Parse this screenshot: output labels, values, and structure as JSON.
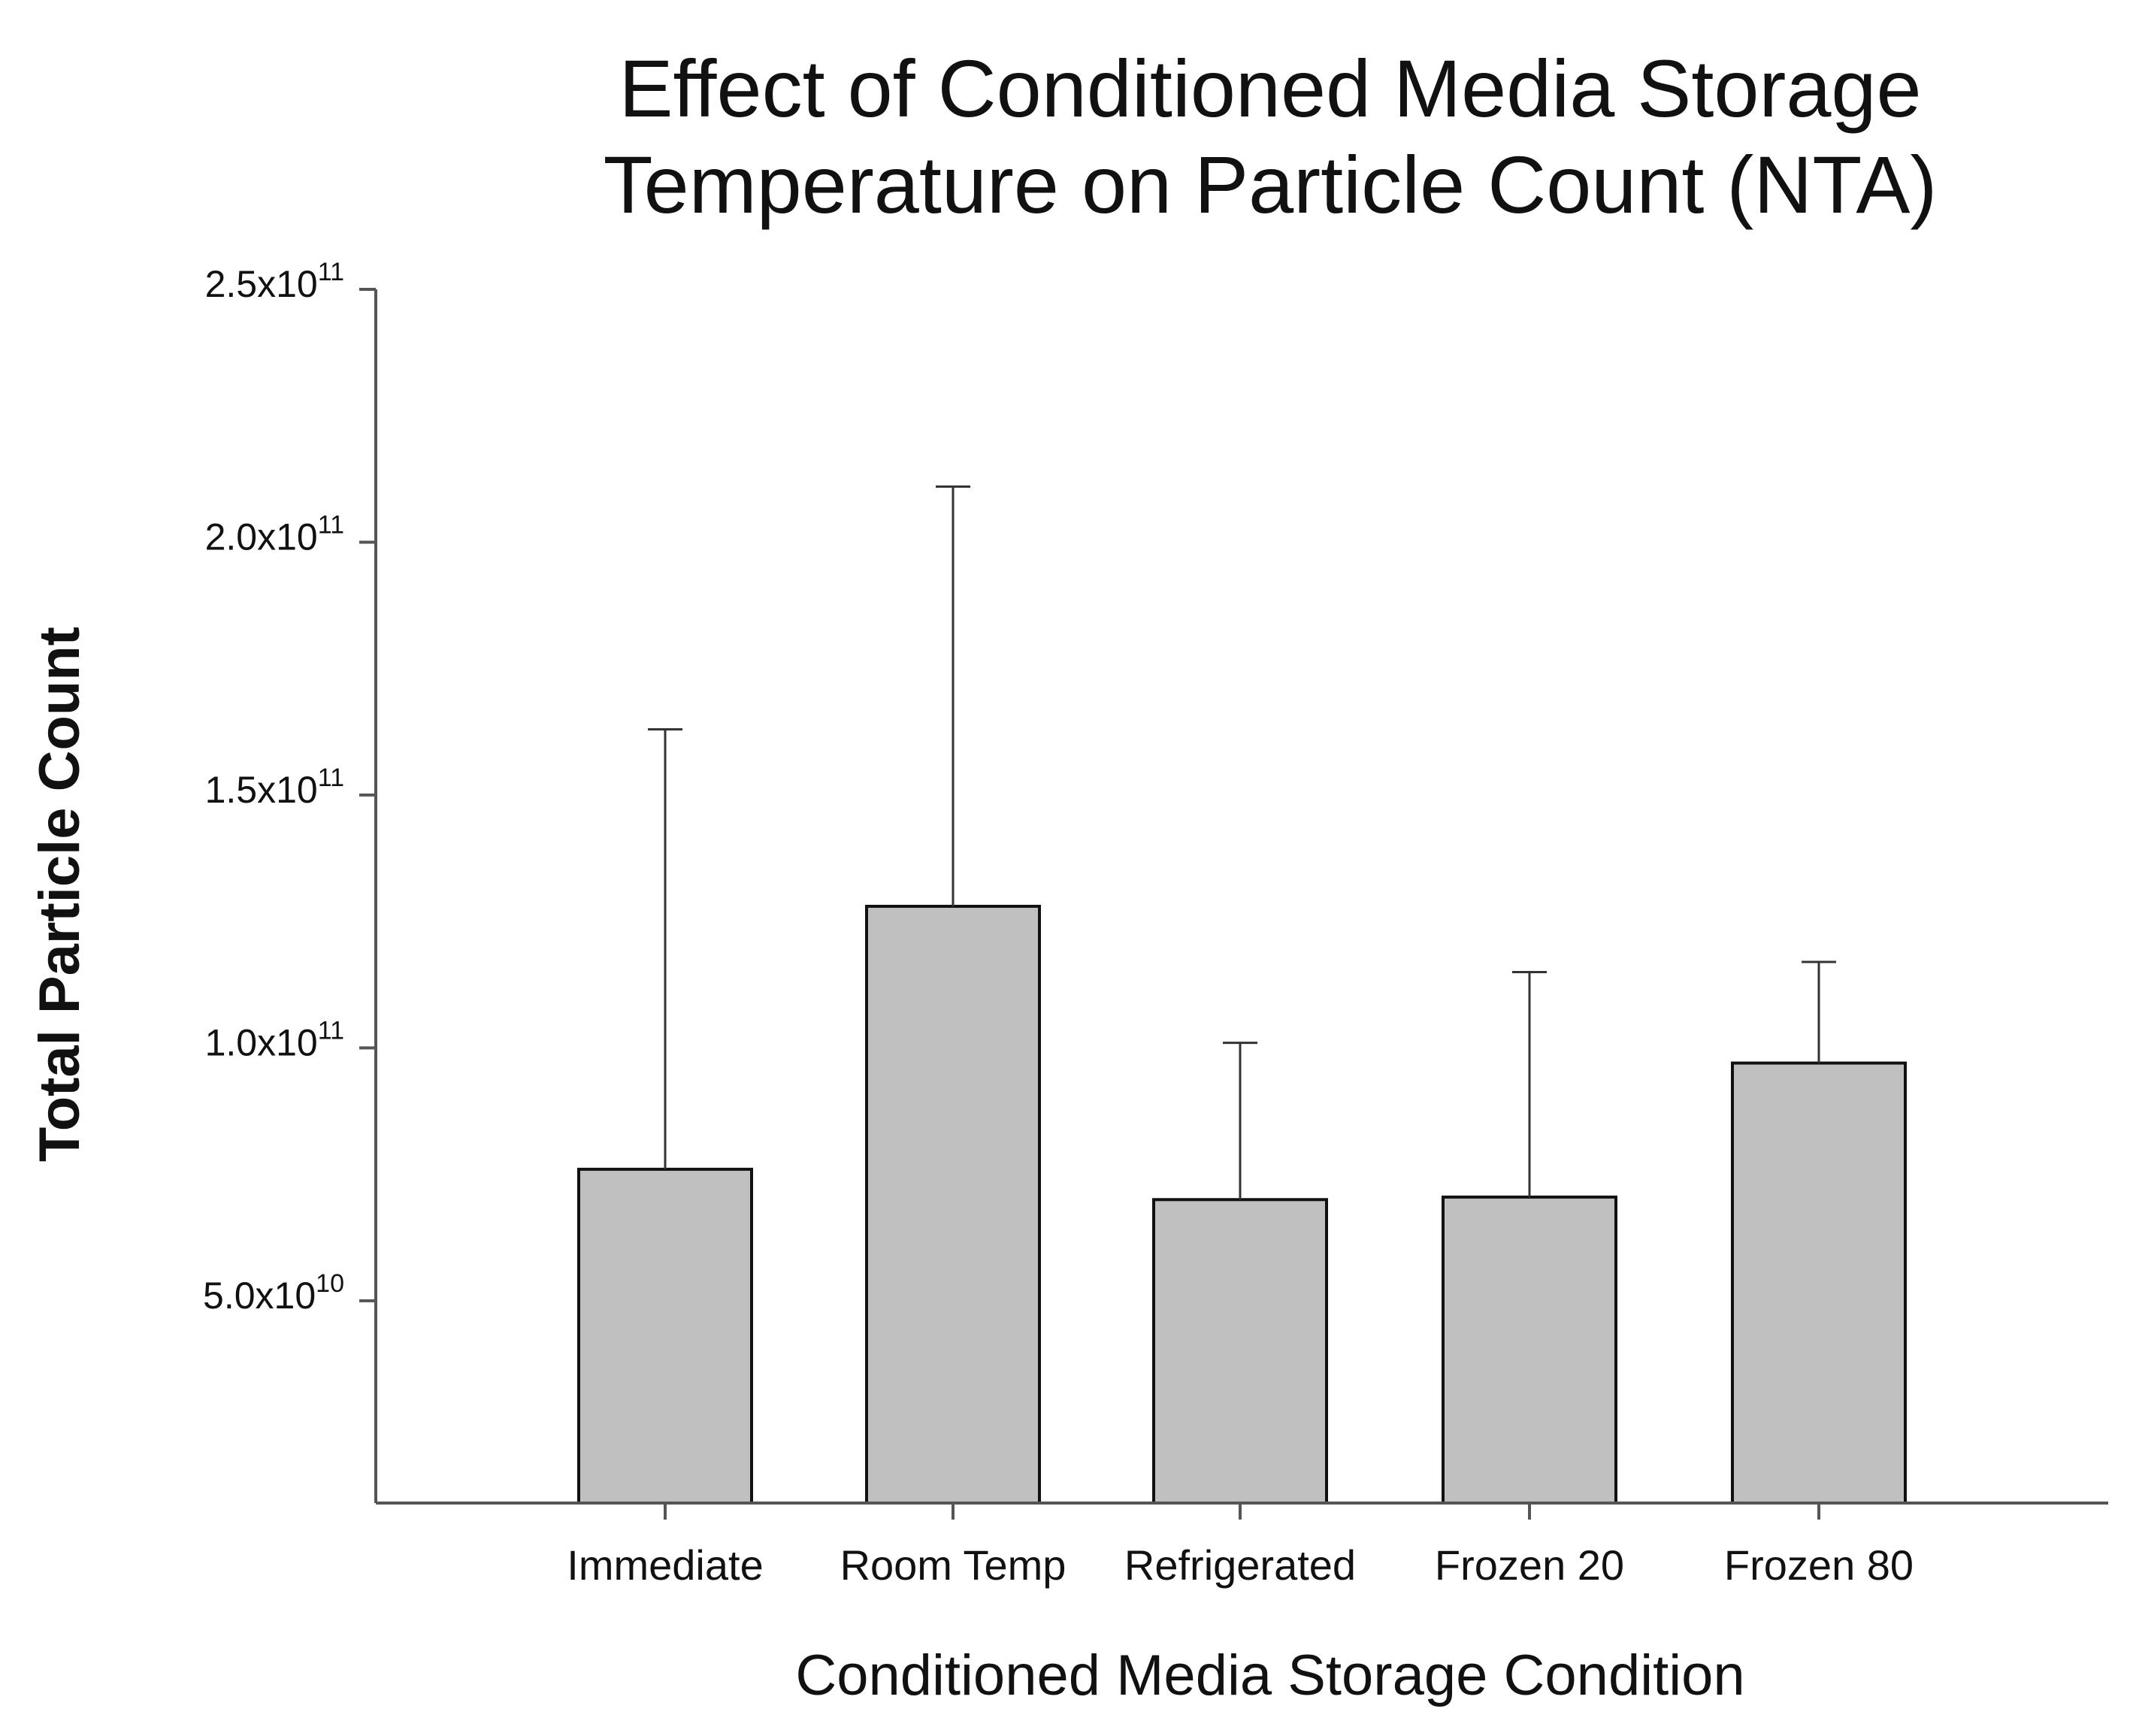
{
  "chart_data": {
    "type": "bar",
    "title_lines": [
      "Effect of Conditioned Media Storage",
      "Temperature on Particle Count (NTA)"
    ],
    "xlabel": "Conditioned Media Storage Condition",
    "ylabel": "Total Particle Count",
    "categories": [
      "Immediate",
      "Room Temp",
      "Refrigerated",
      "Frozen 20",
      "Frozen 80"
    ],
    "series": [
      {
        "name": "Total Particle Count",
        "values": [
          76000000000,
          128000000000,
          70000000000,
          70500000000,
          97000000000
        ],
        "error_upper": [
          163000000000,
          211000000000,
          101000000000,
          115000000000,
          117000000000
        ]
      }
    ],
    "ylim": [
      10000000000,
      250000000000
    ],
    "y_ticks": [
      {
        "value": 50000000000,
        "mantissa": "5.0x10",
        "exponent": "10"
      },
      {
        "value": 100000000000,
        "mantissa": "1.0x10",
        "exponent": "11"
      },
      {
        "value": 150000000000,
        "mantissa": "1.5x10",
        "exponent": "11"
      },
      {
        "value": 200000000000,
        "mantissa": "2.0x10",
        "exponent": "11"
      },
      {
        "value": 250000000000,
        "mantissa": "2.5x10",
        "exponent": "11"
      }
    ],
    "grid": false,
    "colors": {
      "bar_fill": "#c0c0c0",
      "bar_stroke": "#111111",
      "axis": "#555555",
      "error_bar": "#333333"
    }
  }
}
